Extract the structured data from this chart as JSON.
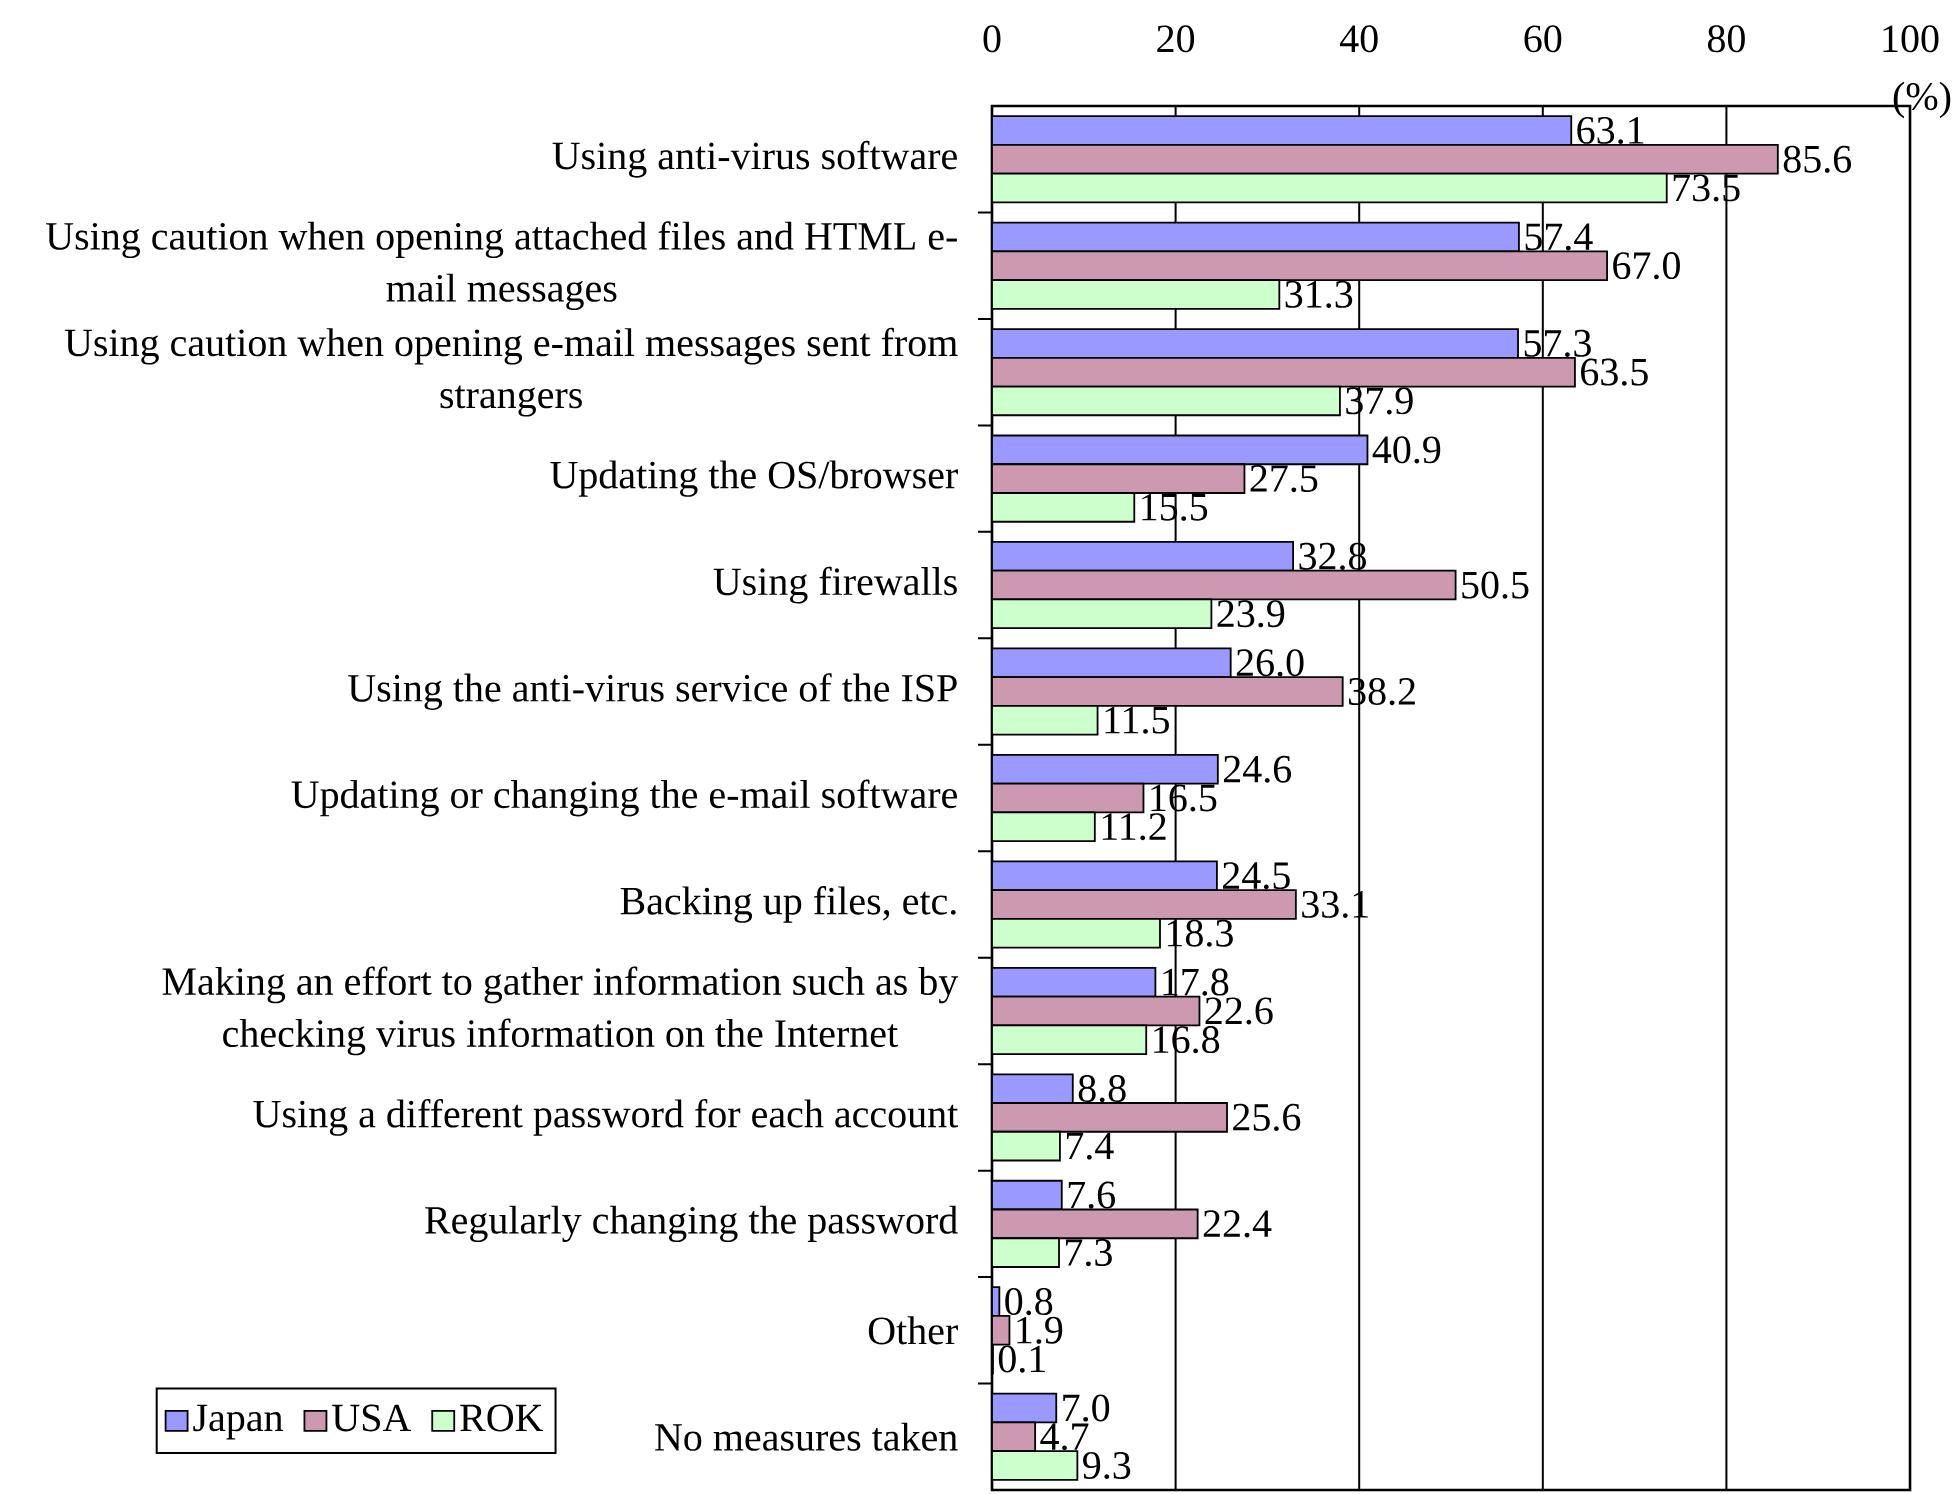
{
  "chart_data": {
    "type": "bar",
    "orientation": "horizontal",
    "xlabel": "(%)",
    "categories": [
      "Using anti-virus software",
      "Using caution when opening attached files and HTML e-mail messages",
      "Using caution when opening e-mail messages sent from strangers",
      "Updating the OS/browser",
      "Using firewalls",
      "Using the anti-virus service of the ISP",
      "Updating or changing the e-mail software",
      "Backing up files, etc.",
      "Making an effort to gather information such as by checking virus information on the Internet",
      "Using a different password for each account",
      "Regularly changing the password",
      "Other",
      "No measures taken"
    ],
    "series": [
      {
        "name": "Japan",
        "color": "#9999ff",
        "values": [
          63.1,
          57.4,
          57.3,
          40.9,
          32.8,
          26.0,
          24.6,
          24.5,
          17.8,
          8.8,
          7.6,
          0.8,
          7.0
        ],
        "value_labels": [
          "63.1",
          "57.4",
          "57.3",
          "40.9",
          "32.8",
          "26.0",
          "24.6",
          "24.5",
          "17.8",
          "8.8",
          "7.6",
          "0.8",
          "7.0"
        ]
      },
      {
        "name": "USA",
        "color": "#cc99b0",
        "values": [
          85.6,
          67.0,
          63.5,
          27.5,
          50.5,
          38.2,
          16.5,
          33.1,
          22.6,
          25.6,
          22.4,
          1.9,
          4.7
        ],
        "value_labels": [
          "85.6",
          "67.0",
          "63.5",
          "27.5",
          "50.5",
          "38.2",
          "16.5",
          "33.1",
          "22.6",
          "25.6",
          "22.4",
          "1.9",
          "4.7"
        ]
      },
      {
        "name": "ROK",
        "color": "#ccffcc",
        "values": [
          73.5,
          31.3,
          37.9,
          15.5,
          23.9,
          11.5,
          11.2,
          18.3,
          16.8,
          7.4,
          7.3,
          0.1,
          9.3
        ],
        "value_labels": [
          "73.5",
          "31.3",
          "37.9",
          "15.5",
          "23.9",
          "11.5",
          "11.2",
          "18.3",
          "16.8",
          "7.4",
          "7.3",
          "0.1",
          "9.3"
        ]
      }
    ],
    "xlim": [
      0,
      100
    ],
    "xticks": [
      0,
      20,
      40,
      60,
      80,
      100
    ],
    "grid": "x",
    "legend": "bottom left"
  }
}
